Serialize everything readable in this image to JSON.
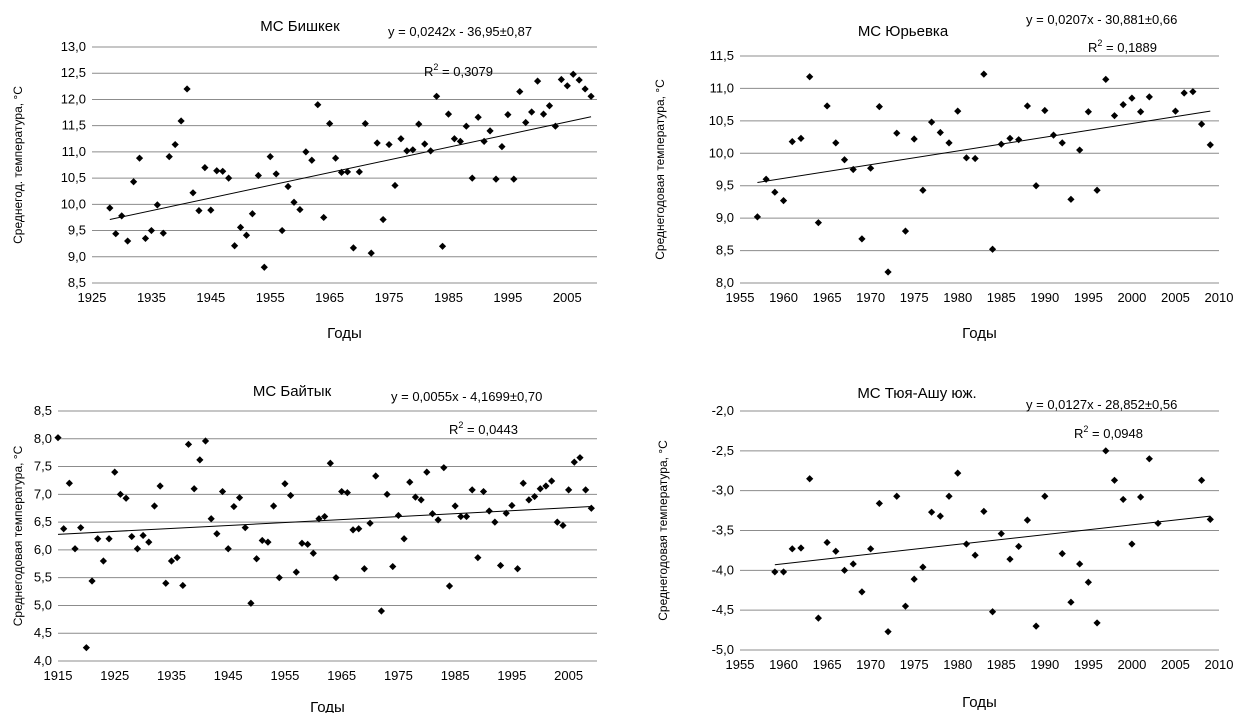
{
  "chart_data": [
    {
      "type": "scatter",
      "title": "МС Бишкек",
      "xlabel": "Годы",
      "ylabel": "Среднегод. температура, °С",
      "xlim": [
        1925,
        2010
      ],
      "ylim": [
        8.5,
        13.0
      ],
      "xticks": [
        "1925",
        "1935",
        "1945",
        "1955",
        "1965",
        "1975",
        "1985",
        "1995",
        "2005"
      ],
      "yticks": [
        "8,5",
        "9,0",
        "9,5",
        "10,0",
        "10,5",
        "11,0",
        "11,5",
        "12,0",
        "12,5",
        "13,0"
      ],
      "grid": "horizontal",
      "equation": "y = 0,0242x - 36,95±0,87",
      "r2_prefix": "R",
      "r2_exp": "2",
      "r2_value": " = 0,3079",
      "trend": {
        "x": [
          1928,
          2009
        ],
        "y": [
          9.71,
          11.67
        ]
      },
      "series": [
        {
          "x": [
            1928,
            1929,
            1930,
            1931,
            1932,
            1933,
            1934,
            1935,
            1936,
            1937,
            1938,
            1939,
            1940,
            1941,
            1942,
            1943,
            1944,
            1945,
            1946,
            1947,
            1948,
            1949,
            1950,
            1951,
            1952,
            1953,
            1954,
            1955,
            1956,
            1957,
            1958,
            1959,
            1960,
            1961,
            1962,
            1963,
            1964,
            1965,
            1966,
            1967,
            1968,
            1969,
            1970,
            1971,
            1972,
            1973,
            1974,
            1975,
            1976,
            1977,
            1978,
            1979,
            1980,
            1981,
            1982,
            1983,
            1984,
            1985,
            1986,
            1987,
            1988,
            1989,
            1990,
            1991,
            1992,
            1993,
            1994,
            1995,
            1996,
            1997,
            1998,
            1999,
            2000,
            2001,
            2002,
            2003,
            2004,
            2005,
            2006,
            2007,
            2008,
            2009
          ],
          "y": [
            9.93,
            9.44,
            9.78,
            9.3,
            10.43,
            10.88,
            9.35,
            9.5,
            9.99,
            9.45,
            10.91,
            11.14,
            11.59,
            12.2,
            10.22,
            9.88,
            10.7,
            9.89,
            10.64,
            10.63,
            10.5,
            9.21,
            9.56,
            9.41,
            9.82,
            10.55,
            8.8,
            10.91,
            10.58,
            9.5,
            10.34,
            10.04,
            9.9,
            11.0,
            10.84,
            11.9,
            9.75,
            11.54,
            10.88,
            10.61,
            10.62,
            9.17,
            10.62,
            11.54,
            9.07,
            11.17,
            9.71,
            11.14,
            10.36,
            11.25,
            11.02,
            11.04,
            11.53,
            11.15,
            11.02,
            12.06,
            9.2,
            11.72,
            11.25,
            11.2,
            11.49,
            10.5,
            11.66,
            11.2,
            11.4,
            10.48,
            11.1,
            11.71,
            10.48,
            12.15,
            11.56,
            11.76,
            12.35,
            11.72,
            11.88,
            11.49,
            12.38,
            12.26,
            12.48,
            12.37,
            12.2,
            12.06
          ]
        }
      ]
    },
    {
      "type": "scatter",
      "title": "МС Юрьевка",
      "xlabel": "Годы",
      "ylabel": "Среднегодовая температура, °С",
      "xlim": [
        1955,
        2010
      ],
      "ylim": [
        8.0,
        11.5
      ],
      "xticks": [
        "1955",
        "1960",
        "1965",
        "1970",
        "1975",
        "1980",
        "1985",
        "1990",
        "1995",
        "2000",
        "2005",
        "2010"
      ],
      "yticks": [
        "8,0",
        "8,5",
        "9,0",
        "9,5",
        "10,0",
        "10,5",
        "11,0",
        "11,5"
      ],
      "grid": "horizontal",
      "equation": "y = 0,0207x - 30,881±0,66",
      "r2_prefix": "R",
      "r2_exp": "2",
      "r2_value": " = 0,1889",
      "trend": {
        "x": [
          1957,
          2009
        ],
        "y": [
          9.55,
          10.65
        ]
      },
      "series": [
        {
          "x": [
            1957,
            1958,
            1959,
            1960,
            1961,
            1962,
            1963,
            1964,
            1965,
            1966,
            1967,
            1968,
            1969,
            1970,
            1971,
            1972,
            1973,
            1974,
            1975,
            1976,
            1977,
            1978,
            1979,
            1980,
            1981,
            1982,
            1983,
            1984,
            1985,
            1986,
            1987,
            1988,
            1989,
            1990,
            1991,
            1992,
            1993,
            1994,
            1995,
            1996,
            1997,
            1998,
            1999,
            2000,
            2001,
            2002,
            2005,
            2006,
            2007,
            2008,
            2009
          ],
          "y": [
            9.02,
            9.6,
            9.4,
            9.27,
            10.18,
            10.23,
            11.18,
            8.93,
            10.73,
            10.16,
            9.9,
            9.75,
            8.68,
            9.77,
            10.72,
            8.17,
            10.31,
            8.8,
            10.22,
            9.43,
            10.48,
            10.32,
            10.16,
            10.65,
            9.93,
            9.92,
            11.22,
            8.52,
            10.14,
            10.23,
            10.21,
            10.73,
            9.5,
            10.66,
            10.28,
            10.16,
            9.29,
            10.05,
            10.64,
            9.43,
            11.14,
            10.58,
            10.75,
            10.85,
            10.64,
            10.87,
            10.65,
            10.93,
            10.95,
            10.45,
            10.13
          ]
        }
      ]
    },
    {
      "type": "scatter",
      "title": "МС Байтык",
      "xlabel": "Годы",
      "ylabel": "Среднегодовая температура, °С",
      "xlim": [
        1915,
        2010
      ],
      "ylim": [
        4.0,
        8.5
      ],
      "xticks": [
        "1915",
        "1925",
        "1935",
        "1945",
        "1955",
        "1965",
        "1975",
        "1985",
        "1995",
        "2005"
      ],
      "yticks": [
        "4,0",
        "4,5",
        "5,0",
        "5,5",
        "6,0",
        "6,5",
        "7,0",
        "7,5",
        "8,0",
        "8,5"
      ],
      "grid": "horizontal",
      "equation": "y = 0,0055x - 4,1699±0,70",
      "r2_prefix": "R",
      "r2_exp": "2",
      "r2_value": " = 0,0443",
      "trend": {
        "x": [
          1915,
          2009
        ],
        "y": [
          6.28,
          6.78
        ]
      },
      "series": [
        {
          "x": [
            1915,
            1916,
            1917,
            1918,
            1919,
            1920,
            1921,
            1922,
            1923,
            1924,
            1925,
            1926,
            1927,
            1928,
            1929,
            1930,
            1931,
            1932,
            1933,
            1934,
            1935,
            1936,
            1937,
            1938,
            1939,
            1940,
            1941,
            1942,
            1943,
            1944,
            1945,
            1946,
            1947,
            1948,
            1949,
            1950,
            1951,
            1952,
            1953,
            1954,
            1955,
            1956,
            1957,
            1958,
            1959,
            1960,
            1961,
            1962,
            1963,
            1964,
            1965,
            1966,
            1967,
            1968,
            1969,
            1970,
            1971,
            1972,
            1973,
            1974,
            1975,
            1976,
            1977,
            1978,
            1979,
            1980,
            1981,
            1982,
            1983,
            1984,
            1985,
            1986,
            1987,
            1988,
            1989,
            1990,
            1991,
            1992,
            1993,
            1994,
            1995,
            1996,
            1997,
            1998,
            1999,
            2000,
            2001,
            2002,
            2003,
            2004,
            2005,
            2006,
            2007,
            2008,
            2009
          ],
          "y": [
            8.02,
            6.38,
            7.2,
            6.02,
            6.4,
            4.24,
            5.44,
            6.2,
            5.8,
            6.2,
            7.4,
            7.0,
            6.93,
            6.24,
            6.02,
            6.26,
            6.14,
            6.79,
            7.15,
            5.4,
            5.8,
            5.86,
            5.36,
            7.9,
            7.1,
            7.62,
            7.96,
            6.56,
            6.29,
            7.05,
            6.02,
            6.78,
            6.94,
            6.4,
            5.04,
            5.84,
            6.17,
            6.14,
            6.79,
            5.5,
            7.19,
            6.98,
            5.6,
            6.12,
            6.1,
            5.94,
            6.56,
            6.6,
            7.56,
            5.5,
            7.05,
            7.03,
            6.36,
            6.38,
            5.66,
            6.48,
            7.33,
            4.9,
            7.0,
            5.7,
            6.62,
            6.2,
            7.22,
            6.95,
            6.9,
            7.4,
            6.65,
            6.54,
            7.48,
            5.35,
            6.79,
            6.6,
            6.6,
            7.08,
            5.86,
            7.05,
            6.7,
            6.5,
            5.72,
            6.66,
            6.8,
            5.66,
            7.2,
            6.9,
            6.96,
            7.1,
            7.15,
            7.24,
            6.5,
            6.44,
            7.08,
            7.58,
            7.66,
            7.08,
            6.75
          ]
        }
      ]
    },
    {
      "type": "scatter",
      "title": "МС Тюя-Ашу юж.",
      "xlabel": "Годы",
      "ylabel": "Среднегодовая температура, °С",
      "xlim": [
        1955,
        2010
      ],
      "ylim": [
        -5.0,
        -2.0
      ],
      "xticks": [
        "1955",
        "1960",
        "1965",
        "1970",
        "1975",
        "1980",
        "1985",
        "1990",
        "1995",
        "2000",
        "2005",
        "2010"
      ],
      "yticks": [
        "-5,0",
        "-4,5",
        "-4,0",
        "-3,5",
        "-3,0",
        "-2,5",
        "-2,0"
      ],
      "grid": "horizontal",
      "equation": "y = 0,0127x - 28,852±0,56",
      "r2_prefix": "R",
      "r2_exp": "2",
      "r2_value": " = 0,0948",
      "trend": {
        "x": [
          1959,
          2009
        ],
        "y": [
          -3.93,
          -3.32
        ]
      },
      "series": [
        {
          "x": [
            1959,
            1960,
            1961,
            1962,
            1963,
            1964,
            1965,
            1966,
            1967,
            1968,
            1969,
            1970,
            1971,
            1972,
            1973,
            1974,
            1975,
            1976,
            1977,
            1978,
            1979,
            1980,
            1981,
            1982,
            1983,
            1984,
            1985,
            1986,
            1987,
            1988,
            1989,
            1990,
            1992,
            1993,
            1994,
            1995,
            1996,
            1997,
            1998,
            1999,
            2000,
            2001,
            2002,
            2003,
            2008,
            2009
          ],
          "y": [
            -4.02,
            -4.02,
            -3.73,
            -3.72,
            -2.85,
            -4.6,
            -3.65,
            -3.76,
            -4.0,
            -3.92,
            -4.27,
            -3.73,
            -3.16,
            -4.77,
            -3.07,
            -4.45,
            -4.11,
            -3.96,
            -3.27,
            -3.32,
            -3.07,
            -2.78,
            -3.67,
            -3.81,
            -3.26,
            -4.52,
            -3.54,
            -3.86,
            -3.7,
            -3.37,
            -4.7,
            -3.07,
            -3.79,
            -4.4,
            -3.92,
            -4.15,
            -4.66,
            -2.5,
            -2.87,
            -3.11,
            -3.67,
            -3.08,
            -2.6,
            -3.41,
            -2.87,
            -3.36
          ]
        }
      ]
    }
  ]
}
